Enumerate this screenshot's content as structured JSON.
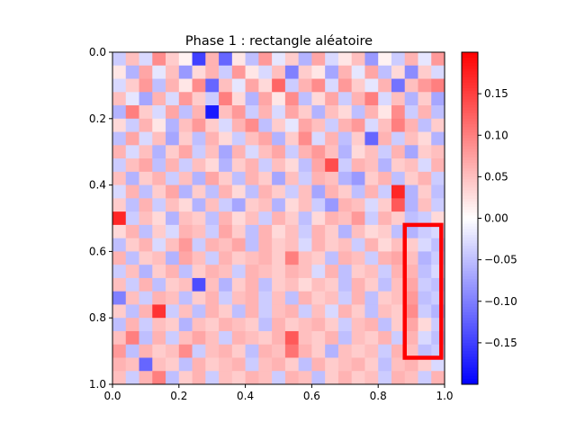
{
  "chart_data": {
    "type": "heatmap",
    "title": "Phase 1 : rectangle aléatoire",
    "xlabel": "",
    "ylabel": "",
    "xlim": [
      0.0,
      1.0
    ],
    "ylim": [
      1.0,
      0.0
    ],
    "x_ticks": [
      "0.0",
      "0.2",
      "0.4",
      "0.6",
      "0.8",
      "1.0"
    ],
    "y_ticks": [
      "0.0",
      "0.2",
      "0.4",
      "0.6",
      "0.8",
      "1.0"
    ],
    "grid": false,
    "colormap": "bwr",
    "clim": [
      -0.2,
      0.2
    ],
    "colorbar_ticks": [
      "0.15",
      "0.10",
      "0.05",
      "0.00",
      "−0.05",
      "−0.10",
      "−0.15"
    ],
    "colorbar_tick_values": [
      0.15,
      0.1,
      0.05,
      0.0,
      -0.05,
      -0.1,
      -0.15
    ],
    "grid_size": [
      25,
      25
    ],
    "highlight_rect": {
      "x0": 0.88,
      "x1": 0.99,
      "y0": 0.52,
      "y1": 0.92,
      "color": "#ff0000"
    },
    "values": [
      [
        -0.04,
        0.05,
        -0.03,
        0.09,
        0.04,
        0.01,
        -0.15,
        0.06,
        -0.12,
        0.02,
        -0.05,
        0.08,
        -0.02,
        0.04,
        -0.06,
        0.07,
        -0.03,
        0.02,
        0.05,
        -0.08,
        0.01,
        -0.04,
        0.06,
        -0.02,
        0.08
      ],
      [
        0.02,
        -0.06,
        0.07,
        -0.02,
        0.05,
        -0.08,
        0.03,
        0.06,
        -0.04,
        0.08,
        0.02,
        -0.03,
        0.05,
        -0.1,
        0.04,
        0.02,
        -0.07,
        0.06,
        -0.02,
        0.07,
        -0.05,
        0.03,
        -0.09,
        0.04,
        -0.03
      ],
      [
        -0.03,
        0.04,
        0.08,
        -0.05,
        0.06,
        0.02,
        0.09,
        -0.12,
        0.05,
        -0.02,
        0.07,
        0.03,
        0.12,
        -0.04,
        0.06,
        0.09,
        -0.03,
        0.08,
        0.04,
        -0.02,
        0.06,
        -0.11,
        0.05,
        0.08,
        0.1
      ],
      [
        0.05,
        -0.02,
        -0.07,
        0.06,
        -0.03,
        0.08,
        0.04,
        -0.04,
        0.1,
        0.03,
        -0.06,
        0.07,
        0.02,
        0.09,
        -0.05,
        0.03,
        0.07,
        -0.04,
        0.06,
        0.1,
        -0.03,
        0.05,
        -0.06,
        0.04,
        -0.07
      ],
      [
        -0.06,
        0.1,
        0.04,
        -0.03,
        0.07,
        -0.05,
        0.06,
        -0.18,
        0.05,
        0.08,
        -0.04,
        0.06,
        -0.03,
        0.07,
        0.04,
        -0.06,
        0.05,
        0.03,
        -0.05,
        0.06,
        0.02,
        0.09,
        -0.04,
        0.06,
        -0.05
      ],
      [
        0.03,
        -0.04,
        0.06,
        0.02,
        -0.06,
        0.05,
        0.08,
        0.04,
        -0.03,
        0.06,
        0.09,
        -0.05,
        0.04,
        -0.02,
        0.07,
        0.05,
        -0.04,
        0.06,
        0.08,
        -0.03,
        0.05,
        0.1,
        0.06,
        -0.05,
        0.04
      ],
      [
        -0.05,
        0.07,
        -0.03,
        0.05,
        -0.07,
        0.04,
        -0.05,
        0.06,
        0.03,
        -0.04,
        0.05,
        0.07,
        -0.06,
        0.04,
        0.09,
        -0.03,
        0.06,
        -0.05,
        0.04,
        -0.12,
        0.06,
        -0.04,
        0.05,
        0.03,
        -0.06
      ],
      [
        0.06,
        -0.03,
        0.05,
        -0.06,
        0.04,
        0.07,
        -0.04,
        0.05,
        -0.07,
        0.06,
        -0.03,
        0.05,
        0.07,
        -0.04,
        0.06,
        0.08,
        0.05,
        -0.06,
        0.03,
        0.05,
        -0.04,
        0.06,
        -0.07,
        0.04,
        0.05
      ],
      [
        -0.04,
        0.05,
        0.07,
        -0.05,
        0.06,
        -0.04,
        0.05,
        0.03,
        -0.06,
        0.04,
        0.06,
        -0.04,
        0.05,
        0.03,
        -0.05,
        0.07,
        0.14,
        -0.04,
        0.06,
        0.05,
        -0.06,
        0.04,
        0.05,
        -0.03,
        0.06
      ],
      [
        0.05,
        -0.06,
        0.04,
        0.06,
        -0.04,
        0.05,
        -0.06,
        0.07,
        0.04,
        -0.05,
        0.06,
        0.04,
        -0.07,
        0.05,
        -0.04,
        0.06,
        0.05,
        -0.06,
        -0.08,
        0.04,
        0.06,
        -0.05,
        0.04,
        0.06,
        -0.04
      ],
      [
        -0.03,
        0.06,
        -0.05,
        0.04,
        0.07,
        -0.06,
        0.04,
        -0.05,
        0.06,
        0.03,
        -0.05,
        0.06,
        0.04,
        -0.04,
        0.05,
        -0.07,
        0.06,
        0.04,
        -0.05,
        0.06,
        -0.04,
        0.17,
        -0.06,
        0.04,
        -0.05
      ],
      [
        0.04,
        -0.05,
        0.06,
        -0.04,
        0.05,
        0.03,
        -0.06,
        0.05,
        -0.04,
        -0.07,
        0.04,
        0.05,
        -0.06,
        0.03,
        0.05,
        -0.04,
        -0.08,
        0.06,
        0.05,
        -0.03,
        0.04,
        0.13,
        -0.06,
        0.05,
        -0.04
      ],
      [
        0.17,
        -0.04,
        0.05,
        0.03,
        -0.06,
        0.05,
        0.04,
        -0.05,
        0.06,
        0.03,
        0.05,
        -0.04,
        0.06,
        0.04,
        -0.05,
        0.03,
        0.06,
        0.05,
        0.08,
        -0.04,
        0.06,
        0.04,
        -0.05,
        -0.04,
        0.03
      ],
      [
        0.03,
        0.06,
        -0.05,
        0.04,
        -0.03,
        0.06,
        0.05,
        -0.04,
        0.07,
        0.04,
        -0.05,
        0.06,
        0.03,
        0.05,
        -0.04,
        0.06,
        0.04,
        -0.06,
        0.05,
        0.03,
        0.04,
        -0.05,
        -0.06,
        -0.04,
        -0.03
      ],
      [
        -0.05,
        0.04,
        0.06,
        -0.03,
        0.05,
        0.08,
        -0.04,
        0.06,
        0.05,
        0.07,
        -0.05,
        0.06,
        0.04,
        0.05,
        -0.03,
        0.06,
        0.04,
        0.05,
        -0.04,
        0.06,
        0.03,
        0.05,
        0.04,
        -0.03,
        -0.05
      ],
      [
        0.06,
        -0.05,
        0.04,
        0.05,
        -0.06,
        0.07,
        0.05,
        -0.04,
        0.06,
        0.04,
        0.05,
        0.06,
        0.04,
        0.1,
        0.05,
        0.04,
        -0.05,
        0.06,
        0.05,
        -0.04,
        0.06,
        0.07,
        0.05,
        -0.06,
        -0.04
      ],
      [
        -0.04,
        0.05,
        -0.06,
        0.04,
        0.06,
        -0.05,
        0.04,
        0.06,
        0.05,
        -0.04,
        0.06,
        0.05,
        0.04,
        0.06,
        0.05,
        -0.03,
        0.06,
        -0.05,
        0.04,
        0.05,
        -0.04,
        0.06,
        0.06,
        -0.05,
        -0.03
      ],
      [
        0.05,
        -0.04,
        0.06,
        -0.05,
        0.04,
        0.05,
        -0.14,
        0.05,
        -0.06,
        0.04,
        0.06,
        -0.05,
        0.04,
        0.05,
        0.03,
        0.05,
        0.04,
        -0.05,
        0.06,
        0.04,
        -0.05,
        0.05,
        0.07,
        -0.04,
        -0.05
      ],
      [
        -0.1,
        0.05,
        -0.04,
        0.06,
        0.05,
        -0.05,
        0.04,
        0.06,
        -0.04,
        0.05,
        0.06,
        -0.04,
        0.05,
        -0.05,
        0.06,
        0.04,
        0.05,
        -0.04,
        0.06,
        -0.05,
        0.04,
        0.05,
        0.08,
        -0.05,
        -0.04
      ],
      [
        0.04,
        -0.05,
        0.06,
        0.16,
        -0.04,
        0.05,
        -0.05,
        0.06,
        0.04,
        -0.05,
        0.06,
        -0.04,
        0.05,
        0.06,
        -0.04,
        0.05,
        -0.03,
        0.06,
        0.04,
        -0.05,
        0.05,
        0.04,
        0.09,
        -0.04,
        -0.06
      ],
      [
        -0.05,
        0.06,
        -0.04,
        0.05,
        0.04,
        -0.06,
        0.05,
        0.04,
        0.06,
        0.05,
        0.04,
        -0.05,
        0.06,
        0.04,
        0.05,
        0.06,
        0.04,
        -0.04,
        0.05,
        0.06,
        -0.05,
        0.04,
        0.07,
        0.03,
        -0.04
      ],
      [
        0.05,
        0.1,
        -0.05,
        0.06,
        -0.04,
        0.05,
        0.07,
        0.05,
        -0.04,
        0.06,
        0.05,
        0.04,
        0.06,
        0.13,
        0.05,
        0.04,
        0.06,
        -0.05,
        0.05,
        0.04,
        0.06,
        -0.04,
        0.06,
        -0.03,
        -0.05
      ],
      [
        0.08,
        -0.05,
        0.06,
        0.04,
        0.05,
        0.09,
        -0.04,
        0.05,
        0.06,
        0.04,
        -0.05,
        0.06,
        0.05,
        0.11,
        0.06,
        0.04,
        -0.06,
        0.05,
        0.04,
        0.05,
        -0.04,
        0.06,
        0.05,
        -0.05,
        -0.04
      ],
      [
        0.06,
        0.05,
        -0.12,
        0.05,
        0.04,
        -0.05,
        0.06,
        0.04,
        0.05,
        0.06,
        -0.04,
        0.05,
        0.06,
        0.04,
        -0.05,
        0.06,
        0.04,
        0.05,
        0.06,
        0.04,
        -0.05,
        0.05,
        0.06,
        0.04,
        -0.03
      ],
      [
        0.05,
        -0.04,
        0.06,
        0.1,
        -0.05,
        0.04,
        0.06,
        -0.04,
        0.05,
        0.04,
        0.06,
        0.05,
        -0.04,
        0.06,
        0.05,
        -0.05,
        0.04,
        0.06,
        0.04,
        0.05,
        -0.04,
        0.06,
        0.05,
        -0.04,
        0.06
      ]
    ]
  }
}
